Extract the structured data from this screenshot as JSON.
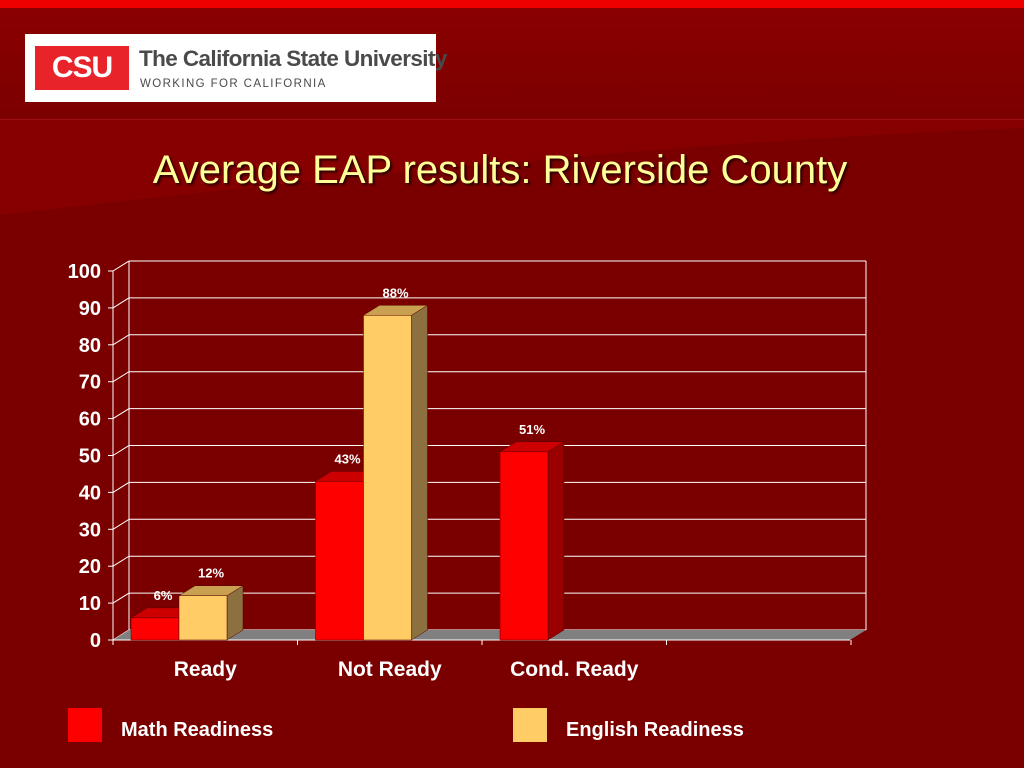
{
  "logo": {
    "mark": "CSU",
    "name": "The California State University",
    "tagline": "WORKING FOR CALIFORNIA"
  },
  "slide": {
    "title": "Average EAP results: Riverside County"
  },
  "colors": {
    "background": "#7a0000",
    "title_text": "#ffff99",
    "math_bar": "#ff0000",
    "english_bar": "#ffcc66",
    "floor": "#808080"
  },
  "chart_data": {
    "type": "bar",
    "categories": [
      "Ready",
      "Not Ready",
      "Cond. Ready"
    ],
    "series": [
      {
        "name": "Math Readiness",
        "values": [
          6,
          43,
          51
        ],
        "labels": [
          "6%",
          "43%",
          "51%"
        ],
        "color": "#ff0000"
      },
      {
        "name": "English Readiness",
        "values": [
          12,
          88,
          null
        ],
        "labels": [
          "12%",
          "88%",
          ""
        ],
        "color": "#ffcc66"
      }
    ],
    "ylim": [
      0,
      100
    ],
    "yticks": [
      0,
      10,
      20,
      30,
      40,
      50,
      60,
      70,
      80,
      90,
      100
    ],
    "grid": true,
    "three_d": true,
    "legend_position": "bottom"
  }
}
